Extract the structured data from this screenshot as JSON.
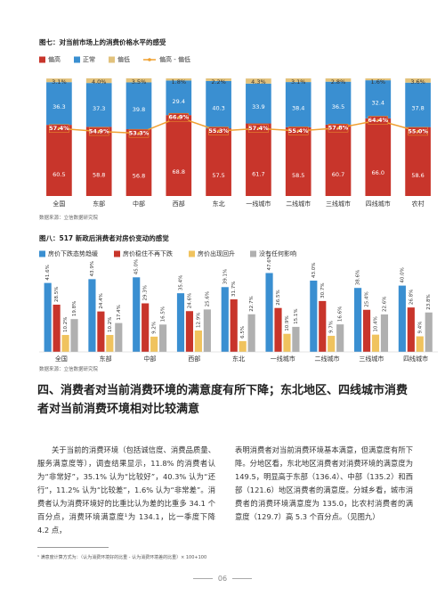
{
  "chart_data": [
    {
      "type": "bar",
      "stacked": true,
      "title": "图七：对当前市场上的消费价格水平的感受",
      "categories": [
        "全国",
        "东部",
        "中部",
        "西部",
        "东北",
        "一线城市",
        "二线城市",
        "三线城市",
        "四线城市",
        "农村"
      ],
      "ylim": [
        0,
        100
      ],
      "series": [
        {
          "name": "偏高",
          "type": "bar",
          "color": "#c8352b",
          "values": [
            60.5,
            58.8,
            56.8,
            68.8,
            57.5,
            61.7,
            58.5,
            60.7,
            66.0,
            58.6
          ],
          "value_labels": [
            "60.5",
            "58.8",
            "56.8",
            "68.8",
            "57.5",
            "61.7",
            "58.5",
            "60.7",
            "66.0",
            "58.6"
          ]
        },
        {
          "name": "正常",
          "type": "bar",
          "color": "#3a8fd1",
          "values": [
            36.3,
            37.3,
            39.8,
            29.4,
            40.3,
            33.9,
            38.4,
            36.5,
            32.4,
            37.8
          ]
        },
        {
          "name": "偏低",
          "type": "bar",
          "color": "#e2c27c",
          "values": [
            3.1,
            4.0,
            3.5,
            1.8,
            2.2,
            4.3,
            3.1,
            2.8,
            1.6,
            3.6
          ],
          "value_labels": [
            "3.1%",
            "4.0%",
            "3.5%",
            "1.8%",
            "2.2%",
            "4.3%",
            "3.1%",
            "2.8%",
            "1.6%",
            "3.6%"
          ]
        },
        {
          "name": "偏高 - 偏低",
          "type": "line",
          "color": "#f0a030",
          "values": [
            57.4,
            54.9,
            53.3,
            66.9,
            55.3,
            57.4,
            55.4,
            57.8,
            64.4,
            55.0
          ],
          "value_labels": [
            "57.4%",
            "54.9%",
            "53.3%",
            "66.9%",
            "55.3%",
            "57.4%",
            "55.4%",
            "57.8%",
            "64.4%",
            "55.0%"
          ]
        }
      ]
    },
    {
      "type": "bar",
      "stacked": false,
      "title": "图八：517 新政后消费者对房价变动的感觉",
      "categories": [
        "全国",
        "东部",
        "中部",
        "西部",
        "东北",
        "一线城市",
        "二线城市",
        "三线城市",
        "四线城市"
      ],
      "ylim": [
        0,
        50
      ],
      "series": [
        {
          "name": "房价下跌态势趋缓",
          "color": "#3a8fd1",
          "values": [
            41.6,
            43.9,
            45.0,
            35.4,
            39.1,
            47.6,
            43.0,
            38.6,
            40.0
          ],
          "value_labels": [
            "41.6%",
            "43.9%",
            "45.0%",
            "35.4%",
            "39.1%",
            "47.6%",
            "43.0%",
            "38.6%",
            "40.0%"
          ]
        },
        {
          "name": "房价稳住不再下跌",
          "color": "#c8352b",
          "values": [
            28.5,
            24.4,
            29.3,
            24.6,
            31.7,
            26.5,
            30.7,
            25.4,
            26.8
          ],
          "value_labels": [
            "28.5%",
            "24.4%",
            "29.3%",
            "24.6%",
            "31.7%",
            "26.5%",
            "30.7%",
            "25.4%",
            "26.8%"
          ]
        },
        {
          "name": "房价出现回升",
          "color": "#f0c35e",
          "values": [
            10.2,
            10.2,
            9.2,
            12.9,
            6.5,
            10.9,
            9.7,
            10.4,
            9.4
          ],
          "value_labels": [
            "10.2%",
            "10.2%",
            "9.2%",
            "12.9%",
            "6.5%",
            "10.9%",
            "9.7%",
            "10.4%",
            "9.4%"
          ]
        },
        {
          "name": "没有任何影响",
          "color": "#b0b0b0",
          "values": [
            19.8,
            17.4,
            16.5,
            25.6,
            22.7,
            15.1,
            16.6,
            22.6,
            23.8
          ],
          "value_labels": [
            "19.8%",
            "17.4%",
            "16.5%",
            "25.6%",
            "22.7%",
            "15.1%",
            "16.6%",
            "22.6%",
            "23.8%"
          ]
        }
      ]
    }
  ],
  "sources": [
    "数据来源：立信数据研究院",
    "数据来源：立信数据研究院"
  ],
  "heading": "四、消费者对当前消费环境的满意度有所下降；东北地区、四线城市消费者对当前消费环境相对比较满意",
  "paragraphs": [
    "关于当前的消费环境（包括诚信度、消费品质量、服务满意度等），调查结果显示，11.8% 的消费者认为“非常好”，35.1% 认为“比较好”，40.3% 认为“还行”，11.2% 认为“比较差”，1.6% 认为“非常差”。消费者认为消费环境好的比重比认为差的比重多 34.1 个百分点，消费环境满意度¹为 134.1，比一季度下降 4.2 点，",
    "表明消费者对当前消费环境基本满意，但满意度有所下降。分地区看，东北地区消费者对消费环境的满意度为 149.5，明显高于东部（136.4）、中部（135.2）和西部（121.6）地区消费者的满意度。分城乡看，城市消费者的消费环境满意度为 135.0，比农村消费者的满意度（129.7）高 5.3 个百分点。（见图九）"
  ],
  "footnote": "¹ 满意度计算方式为：（认为消费环境好的比重 - 认为消费环境差的比重）× 100+100",
  "page_number": "06"
}
